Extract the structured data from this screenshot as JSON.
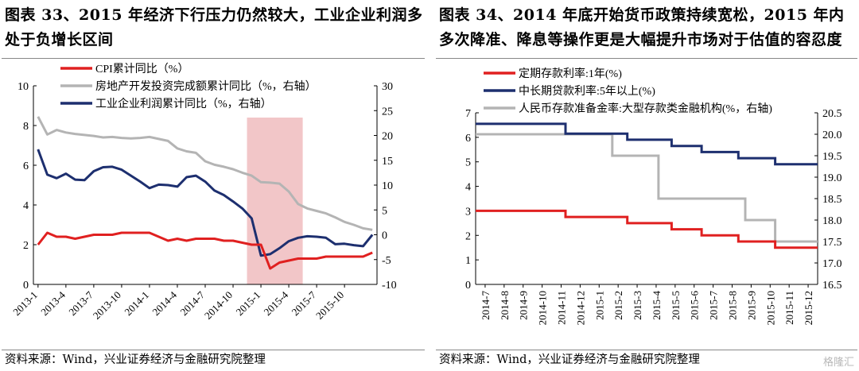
{
  "left": {
    "title": "图表 33、2015 年经济下行压力仍然较大，工业企业利润多处于负增长区间",
    "source": "资料来源：Wind，兴业证券经济与金融研究院整理"
  },
  "right": {
    "title": "图表 34、2014 年底开始货币政策持续宽松，2015 年内多次降准、降息等操作更是大幅提升市场对于估值的容忍度",
    "source": "资料来源：Wind，兴业证券经济与金融研究院整理"
  },
  "watermark": "格隆汇",
  "chart_data": [
    {
      "type": "line",
      "title": "",
      "xlabel": "",
      "ylabel": "",
      "x_tick_labels": [
        "2013-1",
        "2013-4",
        "2013-7",
        "2013-10",
        "2014-1",
        "2014-4",
        "2014-7",
        "2014-10",
        "2015-1",
        "2015-4",
        "2015-7",
        "2015-10"
      ],
      "ylim": [
        0,
        10
      ],
      "y_ticks": [
        0,
        2,
        4,
        6,
        8,
        10
      ],
      "y2lim": [
        -10,
        30
      ],
      "y2_ticks": [
        -10,
        -5,
        0,
        5,
        10,
        15,
        20,
        25,
        30
      ],
      "legend_position": "top-left",
      "shaded_region": {
        "from": "2014-12",
        "to": "2015-5",
        "color": "#f2c6c8"
      },
      "series": [
        {
          "name": "CPI累计同比（%）",
          "axis": "left",
          "color": "#e02020",
          "start": "2013-1",
          "values": [
            2.0,
            2.6,
            2.4,
            2.4,
            2.3,
            2.4,
            2.5,
            2.5,
            2.5,
            2.6,
            2.6,
            2.6,
            2.6,
            2.4,
            2.2,
            2.3,
            2.2,
            2.3,
            2.3,
            2.3,
            2.2,
            2.2,
            2.1,
            2.0,
            2.0,
            0.8,
            1.1,
            1.2,
            1.3,
            1.3,
            1.3,
            1.4,
            1.4,
            1.4,
            1.4,
            1.4,
            1.6
          ]
        },
        {
          "name": "房地产开发投资完成额累计同比（%，右轴）",
          "axis": "right",
          "color": "#b4b4b4",
          "start": "2013-1",
          "values": [
            23.8,
            20.2,
            21.1,
            20.6,
            20.3,
            20.1,
            19.9,
            19.6,
            19.7,
            19.5,
            19.4,
            19.5,
            19.7,
            19.3,
            18.9,
            17.4,
            16.8,
            16.5,
            14.8,
            14.1,
            13.7,
            13.2,
            12.5,
            11.9,
            10.6,
            10.5,
            10.3,
            8.7,
            6.2,
            5.3,
            4.8,
            4.3,
            3.5,
            2.6,
            2.0,
            1.3,
            1.0
          ]
        },
        {
          "name": "工业企业利润累计同比（%，右轴）",
          "axis": "right",
          "color": "#1d2f6f",
          "start": "2013-1",
          "values": [
            17.2,
            12.1,
            11.4,
            12.3,
            11.1,
            11.0,
            12.8,
            13.6,
            13.7,
            13.1,
            11.9,
            10.7,
            9.4,
            10.1,
            10.0,
            9.7,
            11.6,
            11.9,
            10.7,
            8.9,
            8.0,
            6.7,
            5.3,
            3.3,
            -4.2,
            -3.9,
            -2.7,
            -1.3,
            -0.6,
            -0.3,
            -0.4,
            -0.6,
            -1.9,
            -1.8,
            -2.1,
            -2.3,
            0.0
          ]
        }
      ]
    },
    {
      "type": "line",
      "title": "",
      "xlabel": "",
      "ylabel": "",
      "x_tick_labels": [
        "2014-7",
        "2014-8",
        "2014-9",
        "2014-10",
        "2014-11",
        "2014-12",
        "2015-1",
        "2015-2",
        "2015-3",
        "2015-4",
        "2015-5",
        "2015-6",
        "2015-7",
        "2015-8",
        "2015-9",
        "2015-10",
        "2015-11",
        "2015-12"
      ],
      "ylim": [
        0,
        7
      ],
      "y_ticks": [
        0,
        1,
        2,
        3,
        4,
        5,
        6,
        7
      ],
      "y2lim": [
        16.5,
        20.5
      ],
      "y2_ticks": [
        16.5,
        17.0,
        17.5,
        18.0,
        18.5,
        19.0,
        19.5,
        20.0,
        20.5
      ],
      "legend_position": "top-left",
      "series": [
        {
          "name": "定期存款利率:1年(%)",
          "axis": "left",
          "color": "#e02020",
          "shape": "step",
          "points": [
            [
              "2014-07-01",
              3.0
            ],
            [
              "2014-11-22",
              2.75
            ],
            [
              "2015-03-01",
              2.5
            ],
            [
              "2015-05-11",
              2.25
            ],
            [
              "2015-06-28",
              2.0
            ],
            [
              "2015-08-26",
              1.75
            ],
            [
              "2015-10-24",
              1.5
            ],
            [
              "2015-12-31",
              1.5
            ]
          ]
        },
        {
          "name": "中长期贷款利率:5年以上(%)",
          "axis": "left",
          "color": "#1d2f6f",
          "shape": "step",
          "points": [
            [
              "2014-07-01",
              6.55
            ],
            [
              "2014-11-22",
              6.15
            ],
            [
              "2015-03-01",
              5.9
            ],
            [
              "2015-05-11",
              5.65
            ],
            [
              "2015-06-28",
              5.4
            ],
            [
              "2015-08-26",
              5.15
            ],
            [
              "2015-10-24",
              4.9
            ],
            [
              "2015-12-31",
              4.9
            ]
          ]
        },
        {
          "name": "人民币存款准备金率:大型存款类金融机构(%，右轴)",
          "axis": "right",
          "color": "#b4b4b4",
          "shape": "step",
          "points": [
            [
              "2014-07-01",
              20.0
            ],
            [
              "2015-02-05",
              19.5
            ],
            [
              "2015-04-20",
              18.5
            ],
            [
              "2015-09-06",
              18.0
            ],
            [
              "2015-10-24",
              17.5
            ],
            [
              "2015-12-31",
              17.5
            ]
          ]
        }
      ]
    }
  ]
}
